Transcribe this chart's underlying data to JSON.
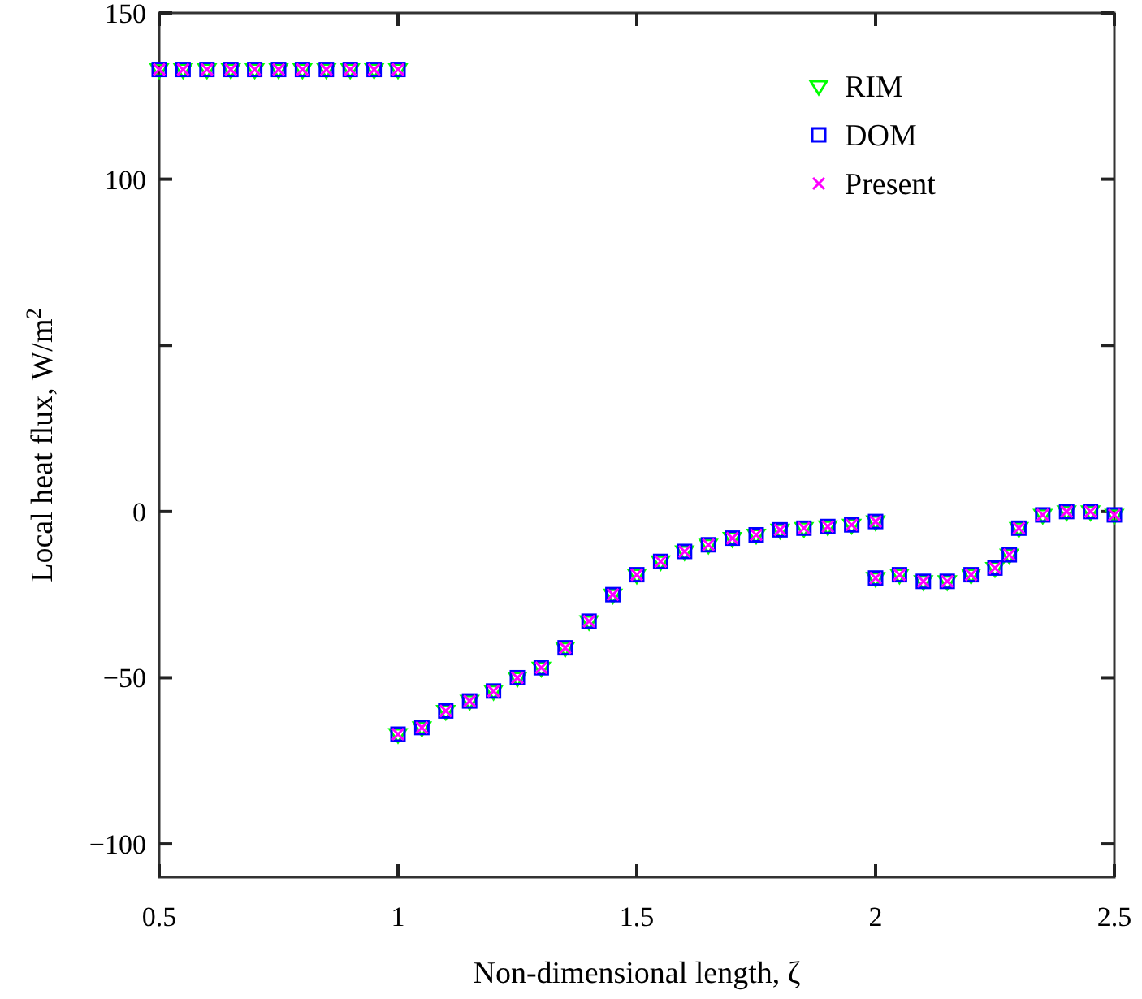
{
  "chart_data": {
    "type": "scatter",
    "xlabel": "Non-dimensional length, ζ",
    "ylabel": "Local heat flux, W/m$^{2}$",
    "x": [
      0.5,
      0.55,
      0.6,
      0.65,
      0.7,
      0.75,
      0.8,
      0.85,
      0.9,
      0.95,
      1.0,
      1.0,
      1.05,
      1.1,
      1.15,
      1.2,
      1.25,
      1.3,
      1.35,
      1.4,
      1.45,
      1.5,
      1.55,
      1.6,
      1.65,
      1.7,
      1.75,
      1.8,
      1.85,
      1.9,
      1.95,
      2.0,
      2.0,
      2.05,
      2.1,
      2.15,
      2.2,
      2.25,
      2.28,
      2.3,
      2.35,
      2.4,
      2.45,
      2.5
    ],
    "series": [
      {
        "name": "RIM",
        "color": "#00ff00",
        "marker": "triangle",
        "values": [
          133,
          133,
          133,
          133,
          133,
          133,
          133,
          133,
          133,
          133,
          133,
          -67,
          -65,
          -60,
          -57,
          -54,
          -50,
          -47,
          -41,
          -33,
          -25,
          -19,
          -15,
          -12,
          -10,
          -8,
          -7,
          -5.5,
          -5,
          -4.5,
          -4,
          -3,
          -20,
          -19,
          -21,
          -21,
          -19,
          -17,
          -13,
          -5,
          -1,
          0,
          0,
          -1
        ]
      },
      {
        "name": "DOM",
        "color": "#0000ff",
        "marker": "square",
        "values": [
          133,
          133,
          133,
          133,
          133,
          133,
          133,
          133,
          133,
          133,
          133,
          -67,
          -65,
          -60,
          -57,
          -54,
          -50,
          -47,
          -41,
          -33,
          -25,
          -19,
          -15,
          -12,
          -10,
          -8,
          -7,
          -5.5,
          -5,
          -4.5,
          -4,
          -3,
          -20,
          -19,
          -21,
          -21,
          -19,
          -17,
          -13,
          -5,
          -1,
          0,
          0,
          -1
        ]
      },
      {
        "name": "Present",
        "color": "#ff00ff",
        "marker": "cross",
        "values": [
          133,
          133,
          133,
          133,
          133,
          133,
          133,
          133,
          133,
          133,
          133,
          -67,
          -65,
          -60,
          -57,
          -54,
          -50,
          -47,
          -41,
          -33,
          -25,
          -19,
          -15,
          -12,
          -10,
          -8,
          -7,
          -5.5,
          -5,
          -4.5,
          -4,
          -3,
          -20,
          -19,
          -21,
          -21,
          -19,
          -17,
          -13,
          -5,
          -1,
          0,
          0,
          -1
        ]
      }
    ],
    "xlim": [
      0.5,
      2.5
    ],
    "xticks": [
      0.5,
      1,
      1.5,
      2,
      2.5
    ],
    "ylim": [
      -110,
      150
    ],
    "yticks": [
      {
        "value": -100,
        "label": "−100"
      },
      {
        "value": -50,
        "label": "−50"
      },
      0,
      {
        "value": 50,
        "label": null
      },
      100,
      150
    ],
    "grid": false,
    "legend": "top right"
  }
}
